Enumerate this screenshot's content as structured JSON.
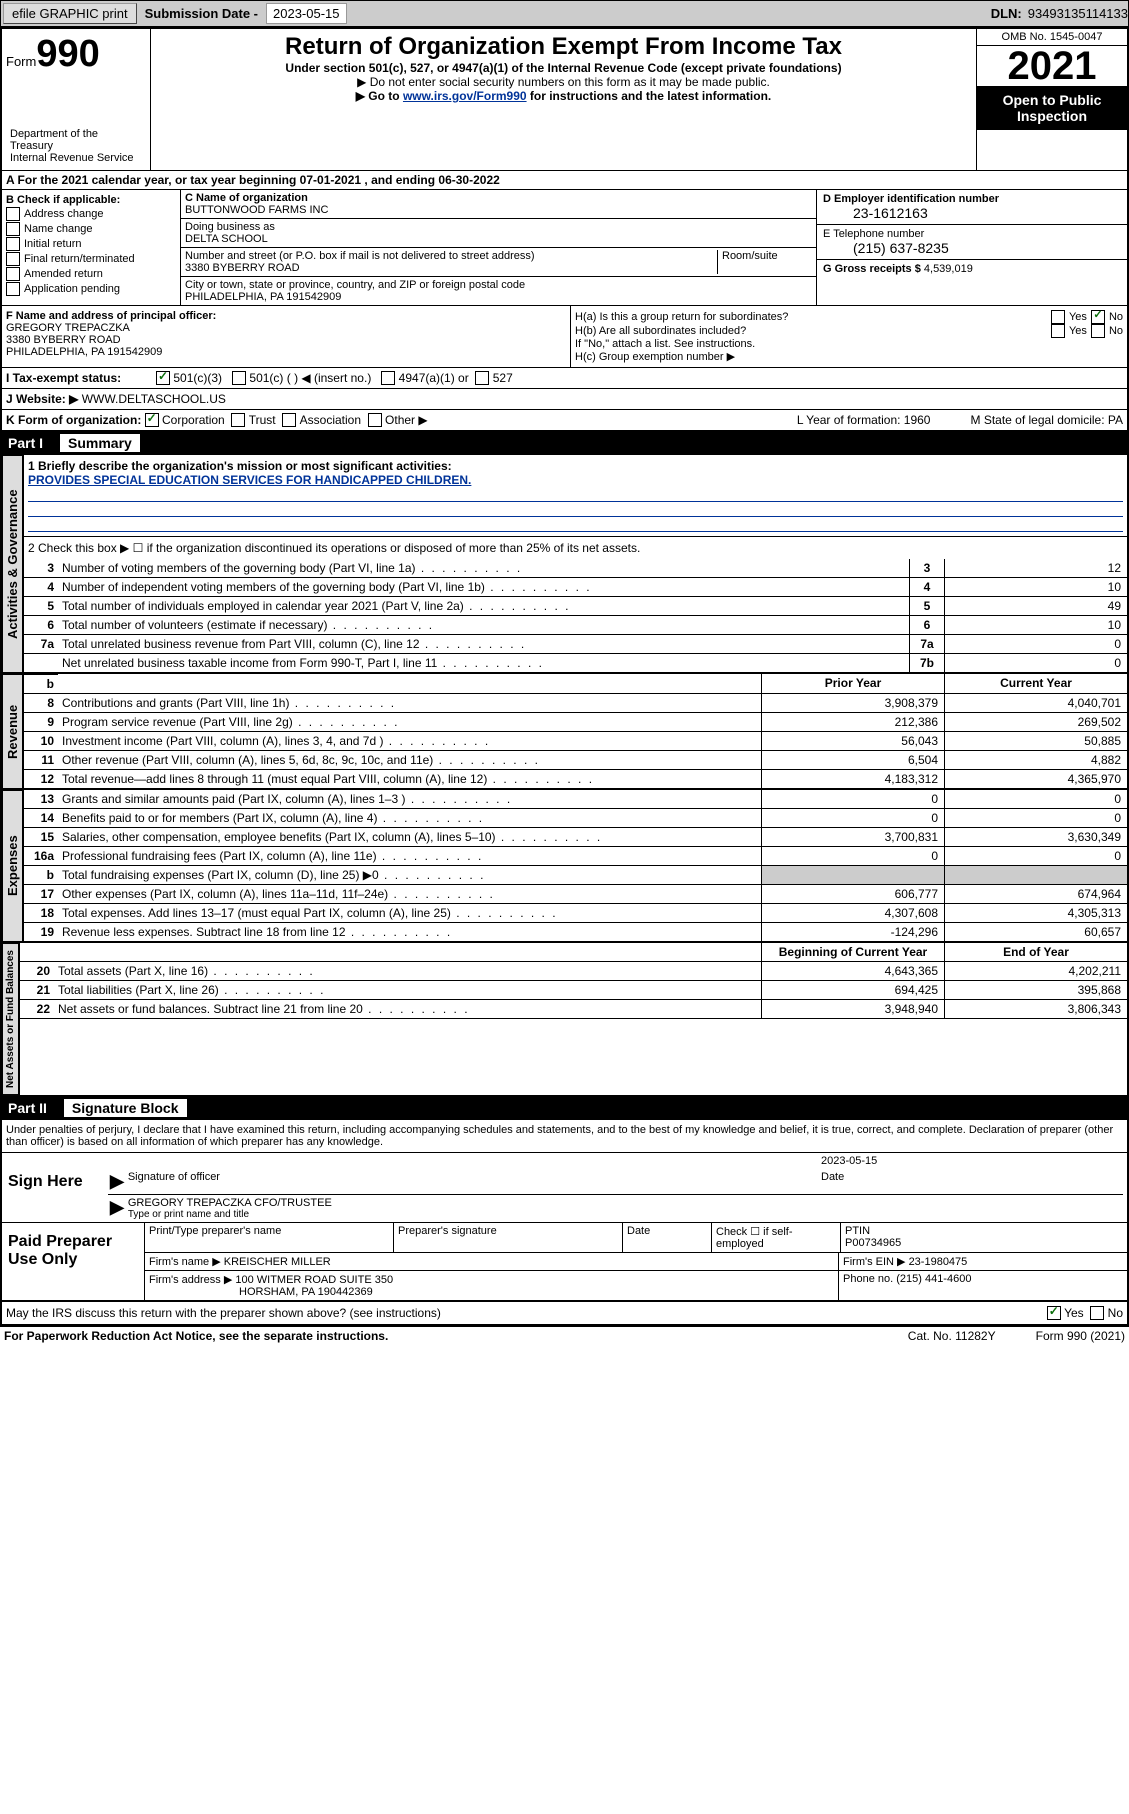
{
  "topbar": {
    "efile": "efile GRAPHIC print",
    "subdate_lbl": "Submission Date - ",
    "subdate": "2023-05-15",
    "dln_lbl": "DLN: ",
    "dln": "93493135114133"
  },
  "header": {
    "form_word": "Form",
    "form_num": "990",
    "title": "Return of Organization Exempt From Income Tax",
    "sub1": "Under section 501(c), 527, or 4947(a)(1) of the Internal Revenue Code (except private foundations)",
    "sub2": "▶ Do not enter social security numbers on this form as it may be made public.",
    "sub3_pre": "▶ Go to ",
    "sub3_link": "www.irs.gov/Form990",
    "sub3_post": " for instructions and the latest information.",
    "omb": "OMB No. 1545-0047",
    "year": "2021",
    "open": "Open to Public Inspection",
    "dept": "Department of the Treasury\nInternal Revenue Service"
  },
  "lineA": {
    "text_a": "A For the 2021 calendar year, or tax year beginning ",
    "begin": "07-01-2021",
    "mid": " , and ending ",
    "end": "06-30-2022"
  },
  "boxB": {
    "title": "B Check if applicable:",
    "opts": [
      "Address change",
      "Name change",
      "Initial return",
      "Final return/terminated",
      "Amended return",
      "Application pending"
    ]
  },
  "boxC": {
    "name_lbl": "C Name of organization",
    "name": "BUTTONWOOD FARMS INC",
    "dba_lbl": "Doing business as",
    "dba": "DELTA SCHOOL",
    "street_lbl": "Number and street (or P.O. box if mail is not delivered to street address)",
    "room_lbl": "Room/suite",
    "street": "3380 BYBERRY ROAD",
    "city_lbl": "City or town, state or province, country, and ZIP or foreign postal code",
    "city": "PHILADELPHIA, PA  191542909"
  },
  "boxD": {
    "lbl": "D Employer identification number",
    "val": "23-1612163"
  },
  "boxE": {
    "lbl": "E Telephone number",
    "val": "(215) 637-8235"
  },
  "boxG": {
    "lbl": "G Gross receipts $ ",
    "val": "4,539,019"
  },
  "boxF": {
    "lbl": "F Name and address of principal officer:",
    "name": "GREGORY TREPACZKA",
    "addr1": "3380 BYBERRY ROAD",
    "addr2": "PHILADELPHIA, PA  191542909"
  },
  "boxH": {
    "ha": "H(a) Is this a group return for subordinates?",
    "hb": "H(b) Are all subordinates included?",
    "hb_note": "If \"No,\" attach a list. See instructions.",
    "hc": "H(c) Group exemption number ▶",
    "yes": "Yes",
    "no": "No"
  },
  "rowI": {
    "lbl": "I   Tax-exempt status:",
    "c1": "501(c)(3)",
    "c2": "501(c) (  ) ◀ (insert no.)",
    "c3": "4947(a)(1) or",
    "c4": "527"
  },
  "rowJ": {
    "lbl": "J   Website: ▶",
    "val": "WWW.DELTASCHOOL.US"
  },
  "rowK": {
    "lbl": "K Form of organization:",
    "o1": "Corporation",
    "o2": "Trust",
    "o3": "Association",
    "o4": "Other ▶",
    "L": "L Year of formation: 1960",
    "M": "M State of legal domicile: PA"
  },
  "part1": {
    "lbl": "Part I",
    "title": "Summary"
  },
  "summary": {
    "q1": "1  Briefly describe the organization's mission or most significant activities:",
    "mission": "PROVIDES SPECIAL EDUCATION SERVICES FOR HANDICAPPED CHILDREN.",
    "q2": "2  Check this box ▶ ☐  if the organization discontinued its operations or disposed of more than 25% of its net assets.",
    "rows_gov": [
      {
        "n": "3",
        "d": "Number of voting members of the governing body (Part VI, line 1a)",
        "b": "3",
        "v": "12"
      },
      {
        "n": "4",
        "d": "Number of independent voting members of the governing body (Part VI, line 1b)",
        "b": "4",
        "v": "10"
      },
      {
        "n": "5",
        "d": "Total number of individuals employed in calendar year 2021 (Part V, line 2a)",
        "b": "5",
        "v": "49"
      },
      {
        "n": "6",
        "d": "Total number of volunteers (estimate if necessary)",
        "b": "6",
        "v": "10"
      },
      {
        "n": "7a",
        "d": "Total unrelated business revenue from Part VIII, column (C), line 12",
        "b": "7a",
        "v": "0"
      },
      {
        "n": "",
        "d": "Net unrelated business taxable income from Form 990-T, Part I, line 11",
        "b": "7b",
        "v": "0"
      }
    ],
    "head_prior": "Prior Year",
    "head_curr": "Current Year",
    "rows_rev": [
      {
        "n": "8",
        "d": "Contributions and grants (Part VIII, line 1h)",
        "p": "3,908,379",
        "c": "4,040,701"
      },
      {
        "n": "9",
        "d": "Program service revenue (Part VIII, line 2g)",
        "p": "212,386",
        "c": "269,502"
      },
      {
        "n": "10",
        "d": "Investment income (Part VIII, column (A), lines 3, 4, and 7d )",
        "p": "56,043",
        "c": "50,885"
      },
      {
        "n": "11",
        "d": "Other revenue (Part VIII, column (A), lines 5, 6d, 8c, 9c, 10c, and 11e)",
        "p": "6,504",
        "c": "4,882"
      },
      {
        "n": "12",
        "d": "Total revenue—add lines 8 through 11 (must equal Part VIII, column (A), line 12)",
        "p": "4,183,312",
        "c": "4,365,970"
      }
    ],
    "rows_exp": [
      {
        "n": "13",
        "d": "Grants and similar amounts paid (Part IX, column (A), lines 1–3 )",
        "p": "0",
        "c": "0"
      },
      {
        "n": "14",
        "d": "Benefits paid to or for members (Part IX, column (A), line 4)",
        "p": "0",
        "c": "0"
      },
      {
        "n": "15",
        "d": "Salaries, other compensation, employee benefits (Part IX, column (A), lines 5–10)",
        "p": "3,700,831",
        "c": "3,630,349"
      },
      {
        "n": "16a",
        "d": "Professional fundraising fees (Part IX, column (A), line 11e)",
        "p": "0",
        "c": "0"
      },
      {
        "n": "b",
        "d": "Total fundraising expenses (Part IX, column (D), line 25) ▶0",
        "p": "",
        "c": "",
        "grey": true
      },
      {
        "n": "17",
        "d": "Other expenses (Part IX, column (A), lines 11a–11d, 11f–24e)",
        "p": "606,777",
        "c": "674,964"
      },
      {
        "n": "18",
        "d": "Total expenses. Add lines 13–17 (must equal Part IX, column (A), line 25)",
        "p": "4,307,608",
        "c": "4,305,313"
      },
      {
        "n": "19",
        "d": "Revenue less expenses. Subtract line 18 from line 12",
        "p": "-124,296",
        "c": "60,657"
      }
    ],
    "head_beg": "Beginning of Current Year",
    "head_end": "End of Year",
    "rows_net": [
      {
        "n": "20",
        "d": "Total assets (Part X, line 16)",
        "p": "4,643,365",
        "c": "4,202,211"
      },
      {
        "n": "21",
        "d": "Total liabilities (Part X, line 26)",
        "p": "694,425",
        "c": "395,868"
      },
      {
        "n": "22",
        "d": "Net assets or fund balances. Subtract line 21 from line 20",
        "p": "3,948,940",
        "c": "3,806,343"
      }
    ],
    "tabs": {
      "gov": "Activities & Governance",
      "rev": "Revenue",
      "exp": "Expenses",
      "net": "Net Assets or Fund Balances"
    }
  },
  "part2": {
    "lbl": "Part II",
    "title": "Signature Block",
    "decl": "Under penalties of perjury, I declare that I have examined this return, including accompanying schedules and statements, and to the best of my knowledge and belief, it is true, correct, and complete. Declaration of preparer (other than officer) is based on all information of which preparer has any knowledge."
  },
  "sign": {
    "here": "Sign Here",
    "sig_lbl": "Signature of officer",
    "date_lbl": "Date",
    "date": "2023-05-15",
    "name": "GREGORY TREPACZKA  CFO/TRUSTEE",
    "name_lbl": "Type or print name and title"
  },
  "preparer": {
    "title": "Paid Preparer Use Only",
    "h1": "Print/Type preparer's name",
    "h2": "Preparer's signature",
    "h3": "Date",
    "h4": "Check ☐ if self-employed",
    "h5_lbl": "PTIN",
    "h5": "P00734965",
    "firm_lbl": "Firm's name   ▶",
    "firm": "KREISCHER MILLER",
    "ein_lbl": "Firm's EIN ▶",
    "ein": "23-1980475",
    "addr_lbl": "Firm's address ▶",
    "addr1": "100 WITMER ROAD SUITE 350",
    "addr2": "HORSHAM, PA  190442369",
    "phone_lbl": "Phone no. ",
    "phone": "(215) 441-4600"
  },
  "discuss": {
    "q": "May the IRS discuss this return with the preparer shown above? (see instructions)",
    "yes": "Yes",
    "no": "No"
  },
  "footer": {
    "l": "For Paperwork Reduction Act Notice, see the separate instructions.",
    "m": "Cat. No. 11282Y",
    "r": "Form 990 (2021)"
  }
}
